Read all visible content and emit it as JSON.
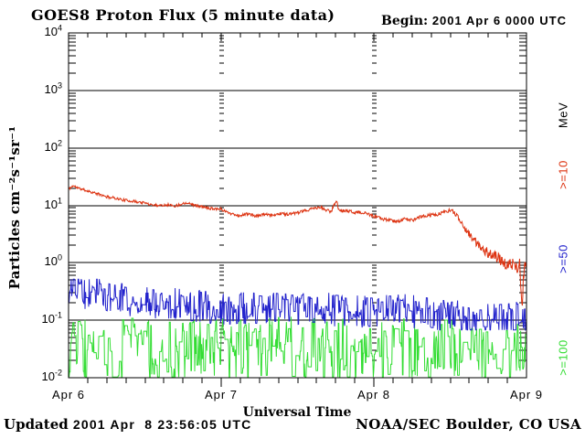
{
  "header": {
    "title": "GOES8 Proton Flux (5 minute data)",
    "begin_label": "Begin:",
    "begin_value": "2001 Apr 6 0000 UTC"
  },
  "footer": {
    "updated_label": "Updated",
    "updated_value": "2001 Apr  8 23:56:05 UTC",
    "credit": "NOAA/SEC Boulder, CO USA"
  },
  "chart_data": {
    "type": "line",
    "title": "GOES8 Proton Flux (5 minute data)",
    "xlabel": "Universal Time",
    "ylabel": "Particles cm⁻²s⁻¹sr⁻¹",
    "right_axis_title": "MeV",
    "y_scale": "log",
    "ylim": [
      0.01,
      10000
    ],
    "y_tick_exponents": [
      "4",
      "3",
      "2",
      "1",
      "0",
      "-1",
      "-2"
    ],
    "x_days": 3,
    "x_tick_labels": [
      "Apr 6",
      "Apr 7",
      "Apr 8",
      "Apr 9"
    ],
    "x_minor_tick_hours": 3,
    "grid": {
      "horizontal": "solid-decades",
      "vertical": "minor-log-dash-columns at day boundaries"
    },
    "legend_position": "right-edge-rotated",
    "colors": {
      "axis": "#000000",
      "ge10": "#dd3311",
      "ge50": "#2222cc",
      "ge100": "#33dd33"
    },
    "right_labels": [
      {
        "text": "MeV",
        "color": "#000000",
        "y": 126
      },
      {
        "text": ">=10",
        "color": "#dd3311",
        "y": 191
      },
      {
        "text": ">=50",
        "color": "#2222cc",
        "y": 283
      },
      {
        "text": ">=100",
        "color": "#33dd33",
        "y": 391
      }
    ],
    "series": [
      {
        "name": ">=100 MeV protons",
        "label": ">=100",
        "color": "#33dd33",
        "seed": 37,
        "noise": [
          [
            0,
            0.55
          ],
          [
            3,
            0.55
          ]
        ],
        "hold": 0.55,
        "clamp": [
          0.0103,
          0.115
        ],
        "keypoints": [
          [
            0,
            0.028
          ],
          [
            0.3,
            0.032
          ],
          [
            0.6,
            0.03
          ],
          [
            1.0,
            0.031
          ],
          [
            1.4,
            0.033
          ],
          [
            1.8,
            0.03
          ],
          [
            2.2,
            0.031
          ],
          [
            2.6,
            0.029
          ],
          [
            3.0,
            0.033
          ]
        ]
      },
      {
        "name": ">=50 MeV protons",
        "label": ">=50",
        "color": "#2222cc",
        "seed": 23,
        "noise": [
          [
            0,
            0.28
          ],
          [
            3,
            0.3
          ]
        ],
        "hold": 0.4,
        "clamp": [
          0.068,
          0.52
        ],
        "keypoints": [
          [
            0,
            0.33
          ],
          [
            0.02,
            0.5
          ],
          [
            0.05,
            0.38
          ],
          [
            0.1,
            0.3
          ],
          [
            0.2,
            0.28
          ],
          [
            0.3,
            0.24
          ],
          [
            0.4,
            0.22
          ],
          [
            0.5,
            0.21
          ],
          [
            0.6,
            0.2
          ],
          [
            0.7,
            0.19
          ],
          [
            0.8,
            0.18
          ],
          [
            0.9,
            0.17
          ],
          [
            1.0,
            0.16
          ],
          [
            1.2,
            0.17
          ],
          [
            1.4,
            0.15
          ],
          [
            1.6,
            0.16
          ],
          [
            1.8,
            0.15
          ],
          [
            2.0,
            0.14
          ],
          [
            2.2,
            0.15
          ],
          [
            2.35,
            0.13
          ],
          [
            2.5,
            0.12
          ],
          [
            2.65,
            0.1
          ],
          [
            2.8,
            0.1
          ],
          [
            2.9,
            0.11
          ],
          [
            3.0,
            0.13
          ]
        ]
      },
      {
        "name": ">=10 MeV protons",
        "label": ">=10",
        "color": "#dd3311",
        "seed": 11,
        "noise": [
          [
            0,
            0.022
          ],
          [
            2.5,
            0.03
          ],
          [
            2.58,
            0.05
          ],
          [
            2.7,
            0.09
          ],
          [
            3,
            0.11
          ]
        ],
        "hold": 0,
        "clamp": [
          0.14,
          30
        ],
        "keypoints": [
          [
            0,
            19
          ],
          [
            0.03,
            22
          ],
          [
            0.06,
            20
          ],
          [
            0.12,
            18
          ],
          [
            0.2,
            15.5
          ],
          [
            0.25,
            14
          ],
          [
            0.3,
            13.5
          ],
          [
            0.35,
            12.5
          ],
          [
            0.42,
            11.8
          ],
          [
            0.5,
            11
          ],
          [
            0.55,
            10.2
          ],
          [
            0.6,
            10
          ],
          [
            0.65,
            10.3
          ],
          [
            0.7,
            9.7
          ],
          [
            0.75,
            10.8
          ],
          [
            0.78,
            11.2
          ],
          [
            0.82,
            10.2
          ],
          [
            0.88,
            9.3
          ],
          [
            0.95,
            8.8
          ],
          [
            1.0,
            8.6
          ],
          [
            1.03,
            7.8
          ],
          [
            1.08,
            7.0
          ],
          [
            1.12,
            6.6
          ],
          [
            1.18,
            7.2
          ],
          [
            1.22,
            6.4
          ],
          [
            1.28,
            7.0
          ],
          [
            1.33,
            6.6
          ],
          [
            1.38,
            7.2
          ],
          [
            1.45,
            7.0
          ],
          [
            1.5,
            7.4
          ],
          [
            1.55,
            8.0
          ],
          [
            1.6,
            8.8
          ],
          [
            1.65,
            9.2
          ],
          [
            1.68,
            8.4
          ],
          [
            1.72,
            7.8
          ],
          [
            1.755,
            12.5
          ],
          [
            1.77,
            8.2
          ],
          [
            1.82,
            8.0
          ],
          [
            1.88,
            7.6
          ],
          [
            1.95,
            7.2
          ],
          [
            2.0,
            6.4
          ],
          [
            2.05,
            5.9
          ],
          [
            2.1,
            5.5
          ],
          [
            2.15,
            5.2
          ],
          [
            2.2,
            5.8
          ],
          [
            2.25,
            5.5
          ],
          [
            2.3,
            6.2
          ],
          [
            2.35,
            6.6
          ],
          [
            2.42,
            7.0
          ],
          [
            2.5,
            8.2
          ],
          [
            2.53,
            7.4
          ],
          [
            2.58,
            4.8
          ],
          [
            2.62,
            3.2
          ],
          [
            2.66,
            2.4
          ],
          [
            2.7,
            1.9
          ],
          [
            2.75,
            1.5
          ],
          [
            2.8,
            1.25
          ],
          [
            2.85,
            1.05
          ],
          [
            2.88,
            0.85
          ],
          [
            2.9,
            1.0
          ],
          [
            2.93,
            0.8
          ],
          [
            2.955,
            0.95
          ],
          [
            2.97,
            0.16
          ],
          [
            2.985,
            0.9
          ],
          [
            3.0,
            0.85
          ]
        ]
      }
    ]
  }
}
